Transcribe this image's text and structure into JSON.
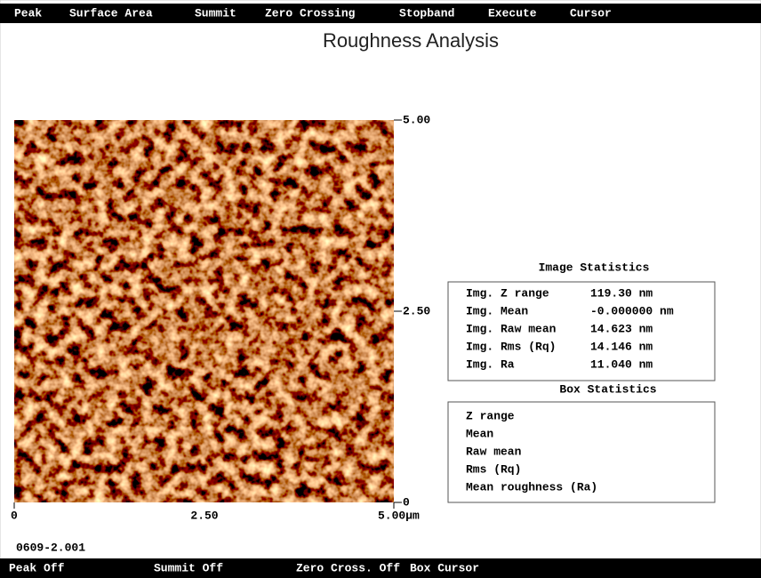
{
  "menu": [
    "Peak",
    "Surface Area",
    "Summit",
    "Zero Crossing",
    "Stopband",
    "Execute",
    "Cursor"
  ],
  "title": "Roughness Analysis",
  "image": {
    "y_ticks": [
      "5.00",
      "2.50",
      "0"
    ],
    "x_ticks": [
      "0",
      "2.50",
      "5.00µm"
    ],
    "filename": "0609-2.001"
  },
  "image_statistics": {
    "title": "Image Statistics",
    "rows": [
      [
        "Img. Z range",
        "119.30 nm"
      ],
      [
        "Img. Mean",
        "-0.000000 nm"
      ],
      [
        "Img. Raw mean",
        "14.623 nm"
      ],
      [
        "Img. Rms (Rq)",
        "14.146 nm"
      ],
      [
        "Img. Ra",
        "11.040 nm"
      ]
    ]
  },
  "box_statistics": {
    "title": "Box Statistics",
    "rows": [
      "Z range",
      "Mean",
      "Raw mean",
      "Rms (Rq)",
      "Mean roughness (Ra)"
    ]
  },
  "status_bar": [
    "Peak Off",
    "Summit Off",
    "Zero Cross. Off",
    "Box Cursor"
  ]
}
